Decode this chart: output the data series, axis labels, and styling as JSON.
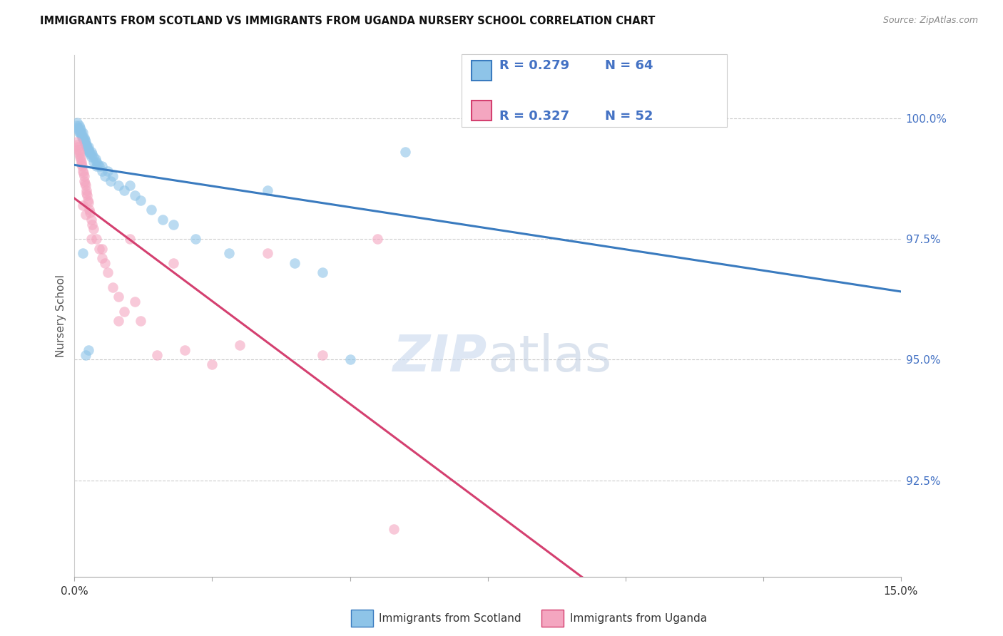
{
  "title": "IMMIGRANTS FROM SCOTLAND VS IMMIGRANTS FROM UGANDA NURSERY SCHOOL CORRELATION CHART",
  "source": "Source: ZipAtlas.com",
  "ylabel": "Nursery School",
  "ytick_labels": [
    "92.5%",
    "95.0%",
    "97.5%",
    "100.0%"
  ],
  "ytick_values": [
    92.5,
    95.0,
    97.5,
    100.0
  ],
  "xlim": [
    0.0,
    15.0
  ],
  "ylim": [
    90.5,
    101.3
  ],
  "scotland_color": "#8ec4e8",
  "uganda_color": "#f4a6c0",
  "scotland_line_color": "#3a7bbf",
  "uganda_line_color": "#d44070",
  "legend_label_scotland": "Immigrants from Scotland",
  "legend_label_uganda": "Immigrants from Uganda",
  "r_scotland": 0.279,
  "n_scotland": 64,
  "r_uganda": 0.327,
  "n_uganda": 52,
  "scot_x": [
    0.04,
    0.05,
    0.06,
    0.07,
    0.08,
    0.09,
    0.1,
    0.1,
    0.11,
    0.12,
    0.13,
    0.14,
    0.15,
    0.15,
    0.16,
    0.17,
    0.18,
    0.19,
    0.2,
    0.2,
    0.21,
    0.22,
    0.23,
    0.24,
    0.25,
    0.25,
    0.26,
    0.27,
    0.28,
    0.3,
    0.3,
    0.32,
    0.35,
    0.35,
    0.38,
    0.4,
    0.4,
    0.42,
    0.45,
    0.5,
    0.5,
    0.55,
    0.6,
    0.65,
    0.7,
    0.8,
    0.9,
    1.0,
    1.1,
    1.2,
    1.4,
    1.6,
    1.8,
    2.2,
    2.8,
    3.5,
    4.0,
    4.5,
    5.0,
    6.0,
    0.15,
    0.2,
    0.25,
    10.8
  ],
  "scot_y": [
    99.85,
    99.9,
    99.8,
    99.75,
    99.85,
    99.7,
    99.8,
    99.7,
    99.75,
    99.65,
    99.7,
    99.6,
    99.7,
    99.6,
    99.55,
    99.6,
    99.5,
    99.55,
    99.5,
    99.45,
    99.4,
    99.45,
    99.4,
    99.35,
    99.4,
    99.3,
    99.35,
    99.3,
    99.25,
    99.3,
    99.2,
    99.25,
    99.2,
    99.1,
    99.15,
    99.0,
    99.1,
    99.05,
    99.0,
    98.9,
    99.0,
    98.8,
    98.9,
    98.7,
    98.8,
    98.6,
    98.5,
    98.6,
    98.4,
    98.3,
    98.1,
    97.9,
    97.8,
    97.5,
    97.2,
    98.5,
    97.0,
    96.8,
    95.0,
    99.3,
    97.2,
    95.1,
    95.2,
    100.0
  ],
  "ugand_x": [
    0.04,
    0.05,
    0.06,
    0.07,
    0.08,
    0.09,
    0.1,
    0.11,
    0.12,
    0.13,
    0.14,
    0.15,
    0.16,
    0.17,
    0.18,
    0.19,
    0.2,
    0.21,
    0.22,
    0.23,
    0.24,
    0.25,
    0.27,
    0.28,
    0.3,
    0.32,
    0.35,
    0.4,
    0.45,
    0.5,
    0.55,
    0.6,
    0.7,
    0.8,
    0.9,
    1.0,
    1.1,
    1.2,
    1.5,
    1.8,
    2.0,
    2.5,
    3.0,
    3.5,
    4.5,
    5.5,
    5.8,
    0.15,
    0.2,
    0.3,
    0.5,
    0.8
  ],
  "ugand_y": [
    99.5,
    99.45,
    99.4,
    99.35,
    99.3,
    99.25,
    99.2,
    99.15,
    99.1,
    99.05,
    99.0,
    98.9,
    98.85,
    98.8,
    98.7,
    98.65,
    98.6,
    98.5,
    98.45,
    98.4,
    98.3,
    98.25,
    98.1,
    98.05,
    97.9,
    97.8,
    97.7,
    97.5,
    97.3,
    97.1,
    97.0,
    96.8,
    96.5,
    96.3,
    96.0,
    97.5,
    96.2,
    95.8,
    95.1,
    97.0,
    95.2,
    94.9,
    95.3,
    97.2,
    95.1,
    97.5,
    91.5,
    98.2,
    98.0,
    97.5,
    97.3,
    95.8
  ]
}
